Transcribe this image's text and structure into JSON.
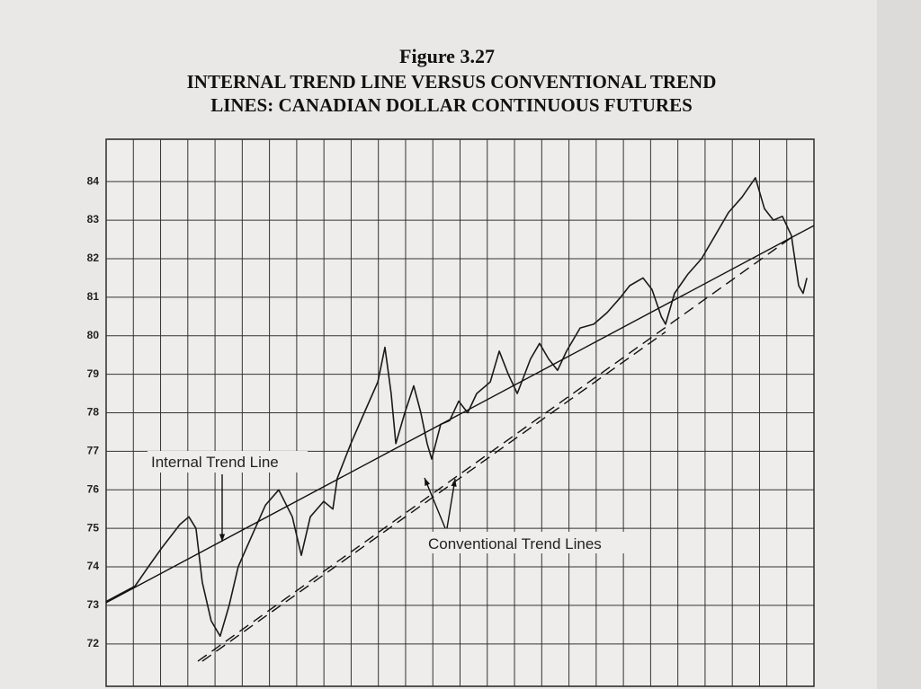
{
  "chart_data": {
    "type": "line",
    "title": "Figure 3.27",
    "subtitle": [
      "INTERNAL TREND LINE VERSUS CONVENTIONAL TREND",
      "LINES: CANADIAN DOLLAR CONTINUOUS FUTURES"
    ],
    "xlim": [
      0,
      26
    ],
    "xticks": [
      0,
      1,
      2,
      3,
      4,
      5,
      6,
      7,
      8,
      9,
      10,
      11,
      12,
      13,
      14,
      15,
      16,
      17,
      18,
      19,
      20,
      21,
      22,
      23,
      24,
      25,
      26
    ],
    "ylim": [
      70.9,
      85.1
    ],
    "yticks": [
      72,
      73,
      74,
      75,
      76,
      77,
      78,
      79,
      80,
      81,
      82,
      83,
      84
    ],
    "grid": true,
    "series": [
      {
        "color": "#1a1a1a",
        "x": [
          0,
          1.06,
          1.55,
          2.05,
          2.71,
          3.04,
          3.3,
          3.53,
          3.86,
          4.19,
          4.52,
          4.85,
          5.35,
          5.85,
          6.34,
          6.84,
          7.17,
          7.5,
          7.99,
          8.33,
          8.49,
          8.99,
          9.48,
          9.98,
          10.24,
          10.47,
          10.64,
          10.97,
          11.3,
          11.56,
          11.79,
          11.96,
          12.29,
          12.62,
          12.95,
          13.28,
          13.61,
          14.11,
          14.44,
          14.77,
          15.1,
          15.59,
          15.92,
          16.25,
          16.58,
          16.91,
          17.41,
          17.91,
          18.4,
          18.9,
          19.23,
          19.72,
          20.05,
          20.39,
          20.55,
          20.88,
          21.37,
          21.87,
          22.37,
          22.86,
          23.36,
          23.85,
          24.18,
          24.51,
          24.84,
          25.17,
          25.44,
          25.6,
          25.74
        ],
        "values": [
          73.1,
          73.5,
          74,
          74.5,
          75.1,
          75.3,
          75,
          73.6,
          72.6,
          72.2,
          73,
          74,
          74.8,
          75.6,
          76,
          75.3,
          74.3,
          75.3,
          75.7,
          75.5,
          76.3,
          77.2,
          78,
          78.8,
          79.7,
          78.5,
          77.2,
          78,
          78.7,
          78,
          77.2,
          76.8,
          77.7,
          77.8,
          78.3,
          78,
          78.5,
          78.8,
          79.6,
          79,
          78.5,
          79.4,
          79.8,
          79.4,
          79.1,
          79.6,
          80.2,
          80.3,
          80.6,
          81,
          81.3,
          81.5,
          81.2,
          80.5,
          80.3,
          81.1,
          81.6,
          82,
          82.6,
          83.2,
          83.6,
          84.1,
          83.3,
          83,
          83.1,
          82.6,
          81.3,
          81.1,
          81.5
        ]
      }
    ],
    "trend_lines": [
      {
        "x": [
          0,
          26
        ],
        "values": [
          73.07,
          82.86
        ],
        "dashed": false
      },
      {
        "x": [
          3.37,
          25.17
        ],
        "values": [
          71.55,
          82.55
        ],
        "dashed": true
      },
      {
        "x": [
          3.53,
          20.55
        ],
        "values": [
          71.55,
          80.1
        ],
        "dashed": true
      }
    ],
    "annotations": [
      "Internal Trend Line",
      "Conventional Trend Lines"
    ]
  }
}
